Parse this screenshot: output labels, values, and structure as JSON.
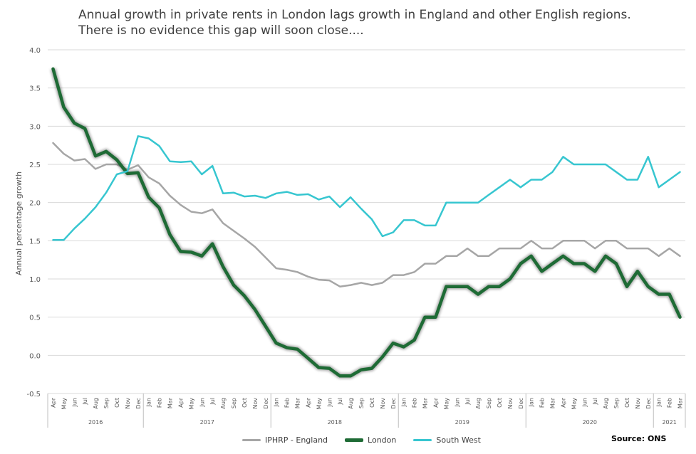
{
  "chart_data": {
    "type": "line",
    "title": [
      "Annual growth in private rents in London lags growth in England and other English regions.",
      "There is no evidence this gap will soon close...."
    ],
    "xlabel": "",
    "ylabel": "Annual percentage growth",
    "ylim": [
      -0.5,
      4.0
    ],
    "yticks": [
      "-0.5",
      "0.0",
      "0.5",
      "1.0",
      "1.5",
      "2.0",
      "2.5",
      "3.0",
      "3.5",
      "4.0"
    ],
    "grid": true,
    "legend_placement": "bottom",
    "months": [
      "Apr",
      "May",
      "Jun",
      "Jul",
      "Aug",
      "Sep",
      "Oct",
      "Nov",
      "Dec",
      "Jan",
      "Feb",
      "Mar",
      "Apr",
      "May",
      "Jun",
      "Jul",
      "Aug",
      "Sep",
      "Oct",
      "Nov",
      "Dec",
      "Jan",
      "Feb",
      "Mar",
      "Apr",
      "May",
      "Jun",
      "Jul",
      "Aug",
      "Sep",
      "Oct",
      "Nov",
      "Dec",
      "Jan",
      "Feb",
      "Mar",
      "Apr",
      "May",
      "Jun",
      "Jul",
      "Aug",
      "Sep",
      "Oct",
      "Nov",
      "Dec",
      "Jan",
      "Feb",
      "Mar",
      "Apr",
      "May",
      "Jun",
      "Jul",
      "Aug",
      "Sep",
      "Oct",
      "Nov",
      "Dec",
      "Jan",
      "Feb",
      "Mar"
    ],
    "years": [
      {
        "label": "2016",
        "start": 0,
        "count": 9
      },
      {
        "label": "2017",
        "start": 9,
        "count": 12
      },
      {
        "label": "2018",
        "start": 21,
        "count": 12
      },
      {
        "label": "2019",
        "start": 33,
        "count": 12
      },
      {
        "label": "2020",
        "start": 45,
        "count": 12
      },
      {
        "label": "2021",
        "start": 57,
        "count": 3
      }
    ],
    "series": [
      {
        "name": "IPHRP - England",
        "color": "#a6a6a6",
        "width": 2.5,
        "values": [
          2.78,
          2.64,
          2.55,
          2.57,
          2.44,
          2.5,
          2.5,
          2.43,
          2.49,
          2.33,
          2.25,
          2.09,
          1.97,
          1.88,
          1.86,
          1.91,
          1.73,
          1.63,
          1.53,
          1.42,
          1.28,
          1.14,
          1.12,
          1.09,
          1.03,
          0.99,
          0.98,
          0.9,
          0.92,
          0.95,
          0.92,
          0.95,
          1.05,
          1.05,
          1.09,
          1.2,
          1.2,
          1.3,
          1.3,
          1.4,
          1.3,
          1.3,
          1.4,
          1.4,
          1.4,
          1.5,
          1.4,
          1.4,
          1.5,
          1.5,
          1.5,
          1.4,
          1.5,
          1.5,
          1.4,
          1.4,
          1.4,
          1.3,
          1.4,
          1.3
        ]
      },
      {
        "name": "London",
        "color": "#1e6b35",
        "width": 4.5,
        "values": [
          3.75,
          3.25,
          3.04,
          2.97,
          2.61,
          2.67,
          2.56,
          2.38,
          2.39,
          2.07,
          1.93,
          1.58,
          1.36,
          1.35,
          1.3,
          1.46,
          1.16,
          0.92,
          0.78,
          0.6,
          0.38,
          0.16,
          0.1,
          0.08,
          -0.04,
          -0.16,
          -0.17,
          -0.27,
          -0.27,
          -0.19,
          -0.17,
          -0.02,
          0.16,
          0.11,
          0.2,
          0.5,
          0.5,
          0.9,
          0.9,
          0.9,
          0.8,
          0.9,
          0.9,
          1.0,
          1.2,
          1.3,
          1.1,
          1.2,
          1.3,
          1.2,
          1.2,
          1.1,
          1.3,
          1.2,
          0.9,
          1.1,
          0.9,
          0.8,
          0.8,
          0.5
        ]
      },
      {
        "name": "South West",
        "color": "#37c6d0",
        "width": 2.5,
        "values": [
          1.51,
          1.51,
          1.66,
          1.79,
          1.94,
          2.13,
          2.37,
          2.41,
          2.87,
          2.84,
          2.74,
          2.54,
          2.53,
          2.54,
          2.37,
          2.48,
          2.12,
          2.13,
          2.08,
          2.09,
          2.06,
          2.12,
          2.14,
          2.1,
          2.11,
          2.04,
          2.08,
          1.94,
          2.07,
          1.92,
          1.78,
          1.56,
          1.61,
          1.77,
          1.77,
          1.7,
          1.7,
          2.0,
          2.0,
          2.0,
          2.0,
          2.1,
          2.2,
          2.3,
          2.2,
          2.3,
          2.3,
          2.4,
          2.6,
          2.5,
          2.5,
          2.5,
          2.5,
          2.4,
          2.3,
          2.3,
          2.6,
          2.2,
          2.3,
          2.4
        ]
      }
    ],
    "source": "Source: ONS"
  }
}
